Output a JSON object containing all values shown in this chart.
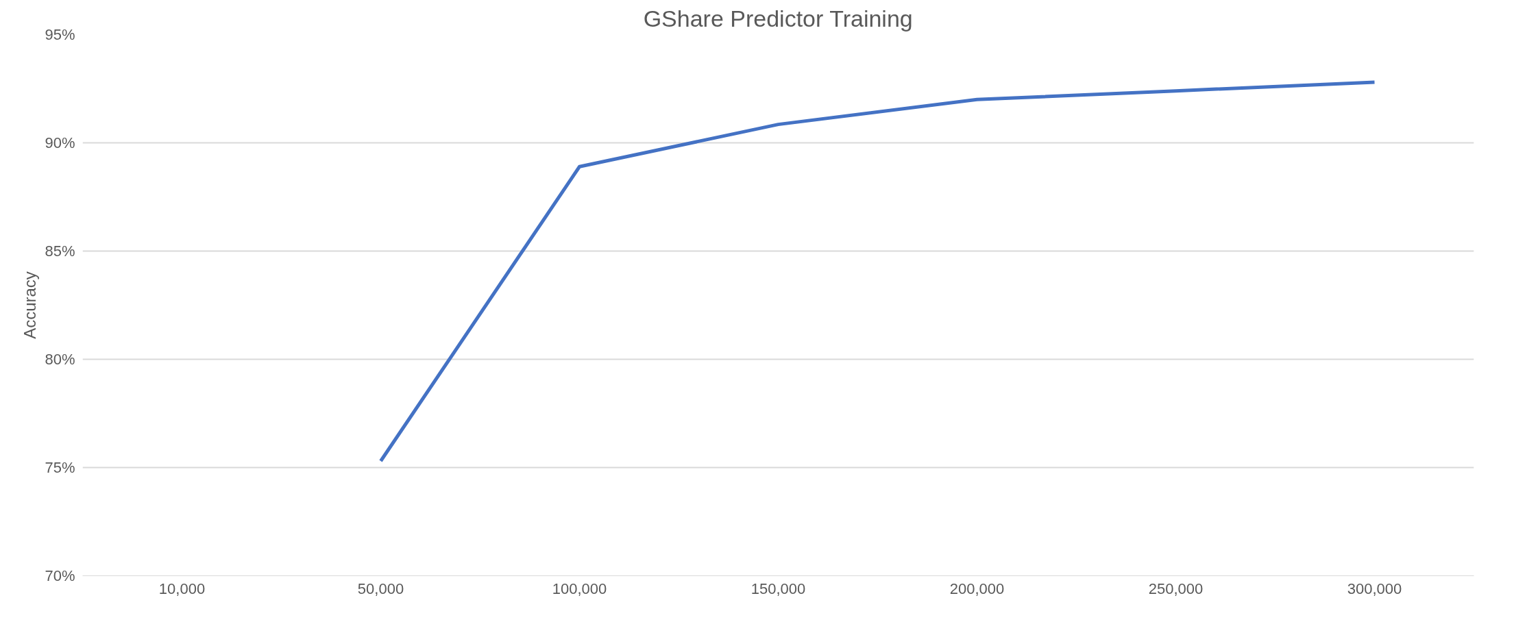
{
  "chart_data": {
    "type": "line",
    "title": "GShare Predictor Training",
    "ylabel": "Accuracy",
    "categories": [
      "10,000",
      "50,000",
      "100,000",
      "150,000",
      "200,000",
      "250,000",
      "300,000"
    ],
    "series": [
      {
        "color": "#4472c4",
        "values": [
          null,
          75.3,
          88.9,
          90.85,
          92.0,
          92.4,
          92.8
        ]
      }
    ],
    "ylim": [
      70,
      95
    ],
    "yticks": [
      {
        "value": 70,
        "label": "70%"
      },
      {
        "value": 75,
        "label": "75%"
      },
      {
        "value": 80,
        "label": "80%"
      },
      {
        "value": 85,
        "label": "85%"
      },
      {
        "value": 90,
        "label": "90%"
      },
      {
        "value": 95,
        "label": "95%"
      }
    ],
    "grid": "y",
    "marker": "none",
    "line_style": "solid"
  }
}
